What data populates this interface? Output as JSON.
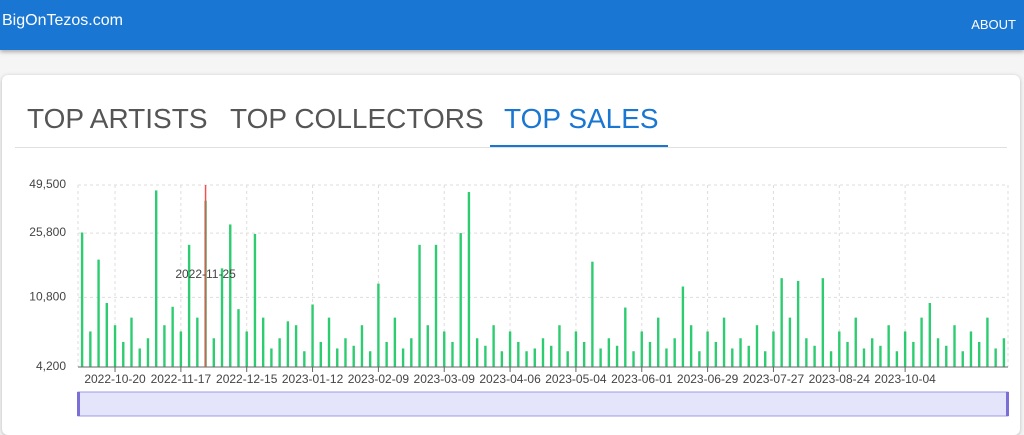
{
  "header": {
    "site": "BigOnTezos.com",
    "about": "ABOUT"
  },
  "tabs": [
    "TOP ARTISTS",
    "TOP COLLECTORS",
    "TOP SALES"
  ],
  "chart_data": {
    "type": "bar",
    "color": "#2ecc71",
    "yscale": "log",
    "grid": true,
    "ylim": [
      4200,
      49500
    ],
    "yticks": [
      {
        "value": 4200,
        "label": "4,200"
      },
      {
        "value": 10800,
        "label": "10,800"
      },
      {
        "value": 25800,
        "label": "25,800"
      },
      {
        "value": 49500,
        "label": "49,500"
      }
    ],
    "highlight_label": "2022-11-25",
    "categories": [
      null,
      null,
      null,
      null,
      "2022-10-20",
      null,
      null,
      null,
      null,
      null,
      null,
      null,
      "2022-11-17",
      null,
      null,
      null,
      null,
      null,
      null,
      null,
      "2022-12-15",
      null,
      null,
      null,
      null,
      null,
      null,
      null,
      "2023-01-12",
      null,
      null,
      null,
      null,
      null,
      null,
      null,
      "2023-02-09",
      null,
      null,
      null,
      null,
      null,
      null,
      null,
      "2023-03-09",
      null,
      null,
      null,
      null,
      null,
      null,
      null,
      "2023-04-06",
      null,
      null,
      null,
      null,
      null,
      null,
      null,
      "2023-05-04",
      null,
      null,
      null,
      null,
      null,
      null,
      null,
      "2023-06-01",
      null,
      null,
      null,
      null,
      null,
      null,
      null,
      "2023-06-29",
      null,
      null,
      null,
      null,
      null,
      null,
      null,
      "2023-07-27",
      null,
      null,
      null,
      null,
      null,
      null,
      null,
      "2023-08-24",
      null,
      null,
      null,
      null,
      null,
      null,
      null,
      "2023-10-04",
      null,
      null,
      null,
      null,
      null,
      null,
      null,
      null,
      null,
      null,
      null,
      null
    ],
    "values": [
      26000,
      6800,
      18000,
      10000,
      7400,
      5900,
      8200,
      5400,
      6200,
      46000,
      7400,
      9500,
      6800,
      22000,
      8200,
      40000,
      6200,
      16000,
      29000,
      9200,
      6800,
      25500,
      8200,
      5400,
      6200,
      7800,
      7400,
      5200,
      9800,
      5900,
      8200,
      5400,
      6200,
      5600,
      7400,
      5200,
      13000,
      5900,
      8200,
      5400,
      6200,
      22000,
      7400,
      22000,
      6800,
      5900,
      25800,
      45000,
      6200,
      5600,
      7400,
      5200,
      6800,
      5900,
      5200,
      5400,
      6200,
      5600,
      7400,
      5200,
      6800,
      5900,
      17500,
      5400,
      6200,
      5600,
      9400,
      5200,
      6800,
      5900,
      8200,
      5400,
      6200,
      12500,
      7400,
      5200,
      6800,
      5900,
      8200,
      5400,
      6200,
      5600,
      7400,
      5200,
      6800,
      14000,
      8200,
      13500,
      6200,
      5600,
      14000,
      5200,
      6800,
      5900,
      8200,
      5400,
      6200,
      5600,
      7400,
      5200,
      6800,
      5900,
      8200,
      10000,
      6200,
      5600,
      7400,
      5200,
      6800,
      5900,
      8200,
      5400,
      6200
    ]
  }
}
